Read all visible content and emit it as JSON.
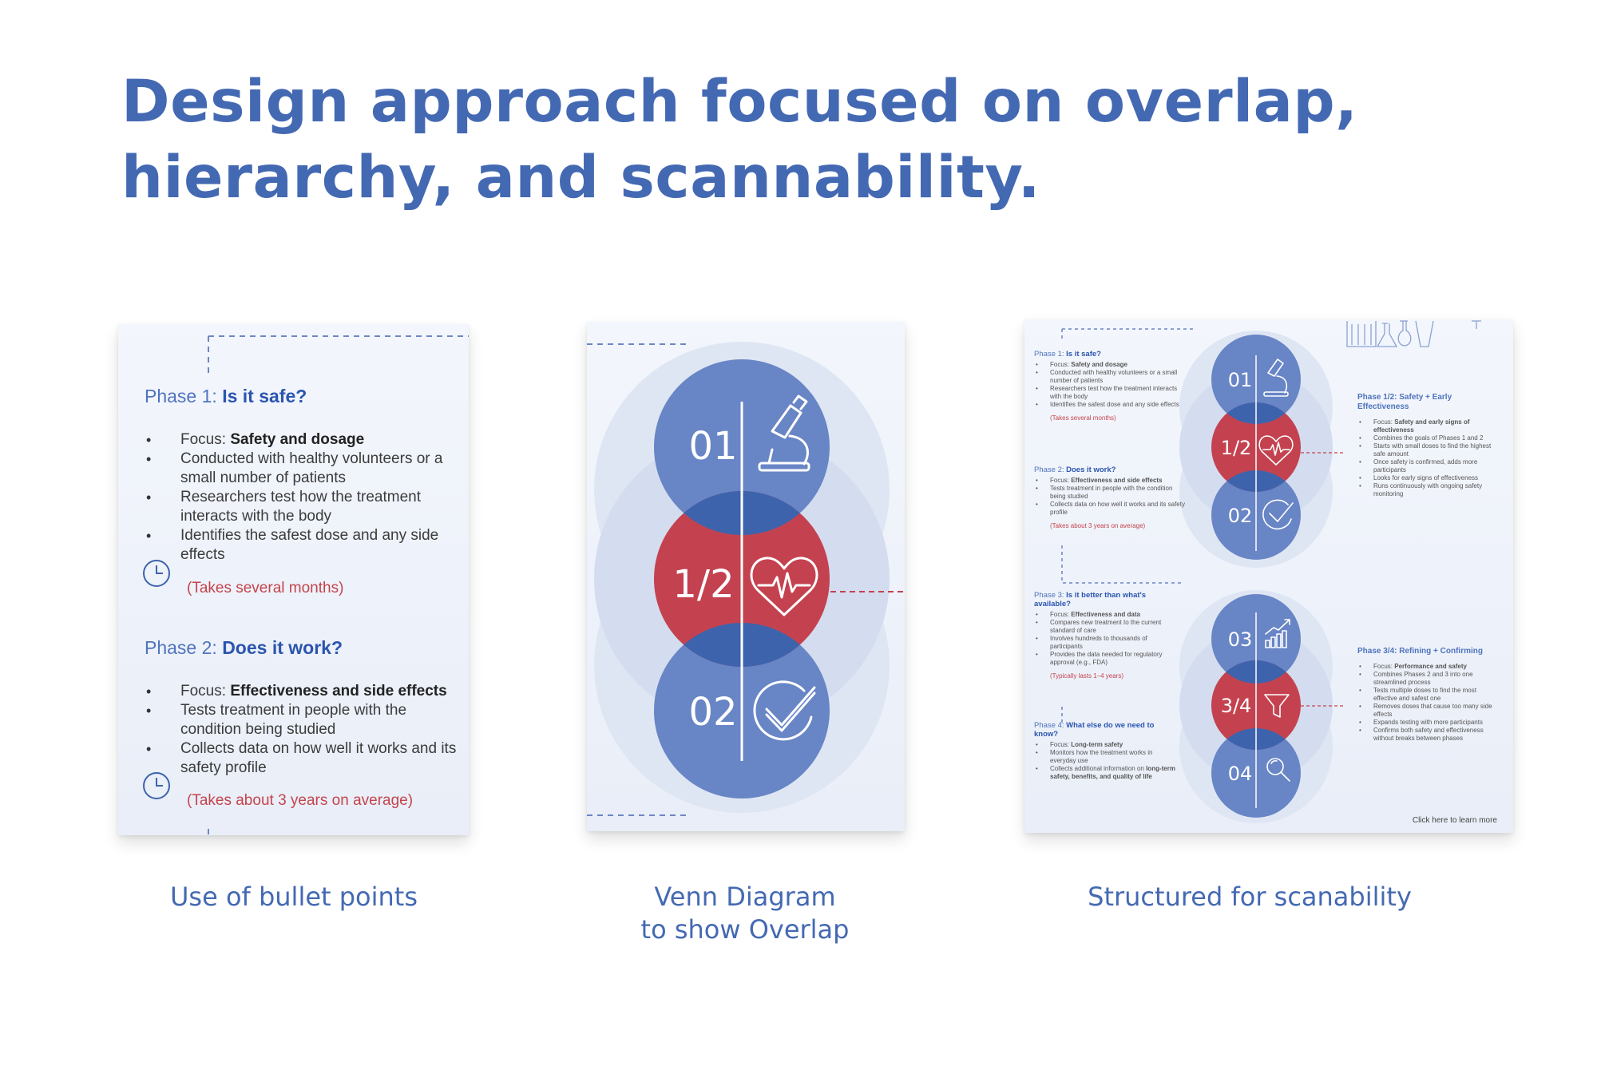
{
  "headline": "Design approach focused on overlap, hierarchy, and scannability.",
  "colors": {
    "accent_blue": "#4469b3",
    "circle_blue": "#6885c6",
    "overlap_blue": "#3d63ad",
    "circle_red": "#c4424f",
    "time_red": "#c4444c"
  },
  "captions": {
    "bullets": "Use of bullet points",
    "venn_line1": "Venn Diagram",
    "venn_line2": "to show Overlap",
    "structure": "Structured for scanability"
  },
  "panel1": {
    "phase1_prefix": "Phase 1:",
    "phase1_q": "Is it safe?",
    "phase1_focus_label": "Focus:",
    "phase1_focus_value": "Safety and dosage",
    "phase1_b2": "Conducted with healthy volunteers or a small number of patients",
    "phase1_b3": "Researchers test how the treatment interacts with the body",
    "phase1_b4": "Identifies the safest dose and any side effects",
    "phase1_time": "(Takes several months)",
    "phase2_prefix": "Phase 2:",
    "phase2_q": "Does it work?",
    "phase2_focus_label": "Focus:",
    "phase2_focus_value": "Effectiveness and side effects",
    "phase2_b2": "Tests treatment in people with the condition being studied",
    "phase2_b3": "Collects data on how well it works and its safety profile",
    "phase2_time": "(Takes about 3 years on average)",
    "icons": [
      "clock-icon"
    ]
  },
  "panel2": {
    "top_number": "01",
    "middle_number": "1/2",
    "bottom_number": "02",
    "icons": [
      "microscope-icon",
      "heartbeat-icon",
      "checkmark-icon"
    ]
  },
  "panel3": {
    "p1_prefix": "Phase 1:",
    "p1_q": "Is it safe?",
    "p1_focus_label": "Focus:",
    "p1_focus_value": "Safety and dosage",
    "p1_b2": "Conducted with healthy volunteers or a small number of patients",
    "p1_b3": "Researchers test how the treatment interacts with the body",
    "p1_b4": "Identifies the safest dose and any side effects",
    "p1_time": "(Takes several months)",
    "p2_prefix": "Phase 2:",
    "p2_q": "Does it work?",
    "p2_focus_label": "Focus:",
    "p2_focus_value": "Effectiveness and side effects",
    "p2_b2": "Tests treatment in people with the condition being studied",
    "p2_b3": "Collects data on how well it works and its safety profile",
    "p2_time": "(Takes about 3 years on average)",
    "p3_prefix": "Phase 3:",
    "p3_q": "Is it better than what's available?",
    "p3_focus_label": "Focus:",
    "p3_focus_value": "Effectiveness and data",
    "p3_b2": "Compares new treatment to the current standard of care",
    "p3_b3": "Involves hundreds to thousands of participants",
    "p3_b4": "Provides the data needed for regulatory approval (e.g., FDA)",
    "p3_time": "(Typically lasts 1–4 years)",
    "p4_prefix": "Phase 4:",
    "p4_q": "What else do we need to know?",
    "p4_focus_label": "Focus:",
    "p4_focus_value": "Long-term safety",
    "p4_b2": "Monitors how the treatment works in everyday use",
    "p4_b3_text": "Collects additional information on",
    "p4_b3_bold": "long-term safety, benefits, and quality of life",
    "p12_prefix": "Phase 1/2:",
    "p12_q": "Safety + Early Effectiveness",
    "p12_focus_label": "Focus:",
    "p12_focus_value": "Safety and early signs of effectiveness",
    "p12_b2": "Combines the goals of Phases 1 and 2",
    "p12_b3": "Starts with small doses to find the highest safe amount",
    "p12_b4": "Once safety is confirmed, adds more participants",
    "p12_b5": "Looks for early signs of effectiveness",
    "p12_b6": "Runs continuously with ongoing safety monitoring",
    "p34_prefix": "Phase 3/4:",
    "p34_q": "Refining + Confirming",
    "p34_focus_label": "Focus:",
    "p34_focus_value": "Performance and safety",
    "p34_b2": "Combines Phases 2 and 3 into one streamlined process",
    "p34_b3": "Tests multiple doses to find the most effective and safest one",
    "p34_b4": "Removes doses that cause too many side effects",
    "p34_b5": "Expands testing with more participants",
    "p34_b6": "Confirms both safety and effectiveness without breaks between phases",
    "learn_more": "Click here to learn more",
    "n01": "01",
    "n12": "1/2",
    "n02": "02",
    "n03": "03",
    "n34": "3/4",
    "n04": "04",
    "icons": [
      "microscope-icon",
      "heartbeat-icon",
      "checkmark-icon",
      "growth-chart-icon",
      "funnel-icon",
      "magnifier-icon",
      "lab-flasks-icon"
    ]
  }
}
